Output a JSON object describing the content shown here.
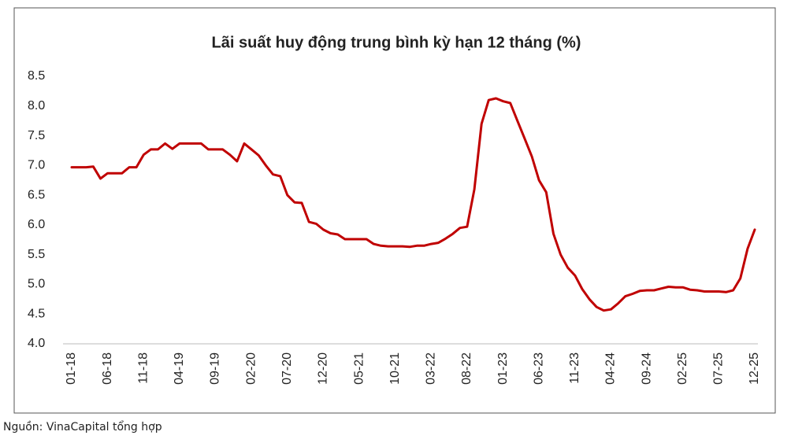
{
  "chart_data": {
    "type": "line",
    "title": "Lãi suất huy động trung bình kỳ hạn 12 tháng (%)",
    "source": "Nguồn: VinaCapital tổng hợp",
    "categories": [
      "01-18",
      null,
      null,
      null,
      null,
      "06-18",
      null,
      null,
      null,
      null,
      "11-18",
      null,
      null,
      null,
      null,
      "04-19",
      null,
      null,
      null,
      null,
      "09-19",
      null,
      null,
      null,
      null,
      "02-20",
      null,
      null,
      null,
      null,
      "07-20",
      null,
      null,
      null,
      null,
      "12-20",
      null,
      null,
      null,
      null,
      "05-21",
      null,
      null,
      null,
      null,
      "10-21",
      null,
      null,
      null,
      null,
      "03-22",
      null,
      null,
      null,
      null,
      "08-22",
      null,
      null,
      null,
      null,
      "01-23",
      null,
      null,
      null,
      null,
      "06-23",
      null,
      null,
      null,
      null,
      "11-23",
      null,
      null,
      null,
      null,
      "04-24",
      null,
      null,
      null,
      null,
      "09-24",
      null,
      null,
      null,
      null,
      "02-25",
      null,
      null,
      null,
      null,
      "07-25",
      null,
      null,
      null,
      null,
      "12-25"
    ],
    "series": [
      {
        "name": "Lãi suất",
        "color": "#c00000",
        "values": [
          6.97,
          6.97,
          6.97,
          6.98,
          6.78,
          6.87,
          6.87,
          6.87,
          6.97,
          6.97,
          7.18,
          7.27,
          7.27,
          7.37,
          7.28,
          7.37,
          7.37,
          7.37,
          7.37,
          7.27,
          7.27,
          7.27,
          7.18,
          7.07,
          7.37,
          7.27,
          7.17,
          7.0,
          6.85,
          6.82,
          6.5,
          6.38,
          6.37,
          6.05,
          6.02,
          5.92,
          5.86,
          5.84,
          5.76,
          5.76,
          5.76,
          5.76,
          5.68,
          5.65,
          5.64,
          5.64,
          5.64,
          5.63,
          5.65,
          5.65,
          5.68,
          5.7,
          5.77,
          5.85,
          5.95,
          5.97,
          6.6,
          7.7,
          8.1,
          8.13,
          8.08,
          8.05,
          7.75,
          7.45,
          7.15,
          6.75,
          6.55,
          5.85,
          5.5,
          5.28,
          5.15,
          4.92,
          4.75,
          4.62,
          4.56,
          4.58,
          4.68,
          4.8,
          4.84,
          4.89,
          4.9,
          4.9,
          4.93,
          4.96,
          4.95,
          4.95,
          4.91,
          4.9,
          4.88,
          4.88,
          4.88,
          4.87,
          4.9,
          5.1,
          5.6,
          5.92
        ]
      }
    ],
    "ylim": [
      4,
      8.5
    ],
    "yticks": [
      {
        "value": 4,
        "label": "4.0"
      },
      4.5,
      {
        "value": 5,
        "label": "5.0"
      },
      5.5,
      {
        "value": 6,
        "label": "6.0"
      },
      6.5,
      {
        "value": 7,
        "label": "7.0"
      },
      7.5,
      {
        "value": 8,
        "label": "8.0"
      },
      8.5
    ],
    "grid": false
  }
}
